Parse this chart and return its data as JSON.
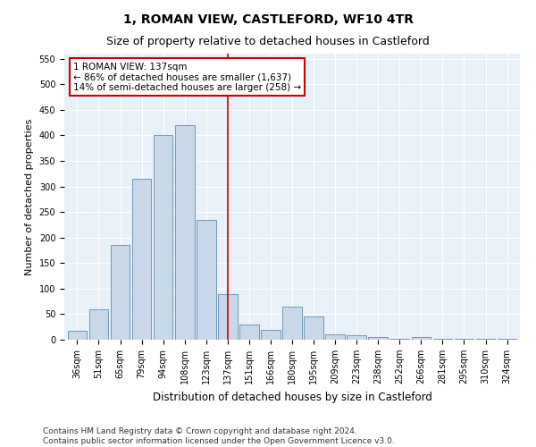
{
  "title": "1, ROMAN VIEW, CASTLEFORD, WF10 4TR",
  "subtitle": "Size of property relative to detached houses in Castleford",
  "xlabel": "Distribution of detached houses by size in Castleford",
  "ylabel": "Number of detached properties",
  "categories": [
    "36sqm",
    "51sqm",
    "65sqm",
    "79sqm",
    "94sqm",
    "108sqm",
    "123sqm",
    "137sqm",
    "151sqm",
    "166sqm",
    "180sqm",
    "195sqm",
    "209sqm",
    "223sqm",
    "238sqm",
    "252sqm",
    "266sqm",
    "281sqm",
    "295sqm",
    "310sqm",
    "324sqm"
  ],
  "values": [
    18,
    60,
    185,
    315,
    400,
    420,
    235,
    90,
    30,
    20,
    65,
    45,
    10,
    8,
    6,
    2,
    5,
    2,
    2,
    2,
    2
  ],
  "bar_color": "#c8d8e8",
  "bar_edge_color": "#5a8db0",
  "highlight_index": 7,
  "highlight_line_color": "#cc0000",
  "annotation_text": "1 ROMAN VIEW: 137sqm\n← 86% of detached houses are smaller (1,637)\n14% of semi-detached houses are larger (258) →",
  "annotation_box_color": "#ffffff",
  "annotation_box_edge": "#cc0000",
  "ylim": [
    0,
    560
  ],
  "yticks": [
    0,
    50,
    100,
    150,
    200,
    250,
    300,
    350,
    400,
    450,
    500,
    550
  ],
  "background_color": "#e8f0f8",
  "footer_text": "Contains HM Land Registry data © Crown copyright and database right 2024.\nContains public sector information licensed under the Open Government Licence v3.0.",
  "title_fontsize": 10,
  "subtitle_fontsize": 9,
  "xlabel_fontsize": 8.5,
  "ylabel_fontsize": 8,
  "tick_fontsize": 7,
  "annotation_fontsize": 7.5,
  "footer_fontsize": 6.5
}
